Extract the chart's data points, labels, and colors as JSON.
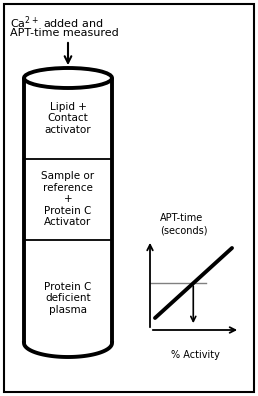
{
  "annotation_text_line1": "Ca$^{2+}$ added and",
  "annotation_text_line2": "APT-time measured",
  "layer1_label": "Lipid +\nContact\nactivator",
  "layer2_label": "Sample or\nreference\n+\nProtein C\nActivator",
  "layer3_label": "Protein C\ndeficient\nplasma",
  "graph_ylabel": "APT-time\n(seconds)",
  "graph_xlabel": "% Activity",
  "font_size_labels": 7.5,
  "font_size_annot": 8.0,
  "font_size_graph": 7.0
}
